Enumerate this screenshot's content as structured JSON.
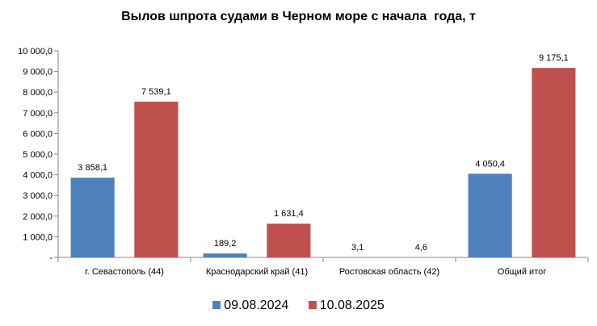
{
  "chart_data": {
    "type": "bar",
    "title": "Вылов шпрота судами в Черном море с начала  года, т",
    "categories": [
      "г. Севастополь (44)",
      "Краснодарский край (41)",
      "Ростовская область (42)",
      "Общий итог"
    ],
    "series": [
      {
        "name": "09.08.2024",
        "color": "#4f81bd",
        "values": [
          3858.1,
          189.2,
          3.1,
          4050.4
        ],
        "labels": [
          "3 858,1",
          "189,2",
          "3,1",
          "4 050,4"
        ]
      },
      {
        "name": "10.08.2025",
        "color": "#c0504d",
        "values": [
          7539.1,
          1631.4,
          4.6,
          9175.1
        ],
        "labels": [
          "7 539,1",
          "1 631,4",
          "4,6",
          "9 175,1"
        ]
      }
    ],
    "yticks": [
      {
        "value": 0,
        "label": "-"
      },
      {
        "value": 1000,
        "label": "1 000,0"
      },
      {
        "value": 2000,
        "label": "2 000,0"
      },
      {
        "value": 3000,
        "label": "3 000,0"
      },
      {
        "value": 4000,
        "label": "4 000,0"
      },
      {
        "value": 5000,
        "label": "5 000,0"
      },
      {
        "value": 6000,
        "label": "6 000,0"
      },
      {
        "value": 7000,
        "label": "7 000,0"
      },
      {
        "value": 8000,
        "label": "8 000,0"
      },
      {
        "value": 9000,
        "label": "9 000,0"
      },
      {
        "value": 10000,
        "label": "10 000,0"
      }
    ],
    "ylim": [
      0,
      10000
    ],
    "grid": false,
    "legend": "bottom"
  }
}
